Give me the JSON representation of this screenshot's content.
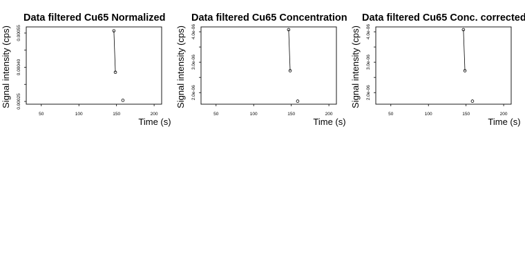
{
  "chart_data": [
    {
      "type": "line",
      "title": "Data filtered Cu65 Normalized",
      "xlabel": "Time (s)",
      "ylabel": "Signal intensity (cps)",
      "xlim": [
        30,
        210
      ],
      "ylim": [
        0.000238,
        0.000577
      ],
      "xticks": [
        "50",
        "100",
        "150",
        "200"
      ],
      "yticks": [
        "0.00025",
        "0.00040",
        "0.00055"
      ],
      "yticks_values": [
        0.00025,
        0.0004,
        0.00055
      ],
      "series": [
        {
          "x": [
            146.5,
            148.5,
            158.5
          ],
          "y": [
            0.00056,
            0.000378,
            0.000255
          ],
          "connected": [
            true,
            true,
            false
          ]
        }
      ],
      "grid": false
    },
    {
      "type": "line",
      "title": "Data filtered Cu65 Concentration",
      "xlabel": "Time (s)",
      "ylabel": "Signal intensity (cps)",
      "xlim": [
        30,
        210
      ],
      "ylim": [
        1.62e-06,
        4.16e-06
      ],
      "xticks": [
        "50",
        "100",
        "150",
        "200"
      ],
      "yticks": [
        "2.0e-06",
        "3.0e-06",
        "4.0e-06"
      ],
      "yticks_values": [
        2e-06,
        3e-06,
        4e-06
      ],
      "series": [
        {
          "x": [
            146.5,
            148.5,
            158.5
          ],
          "y": [
            4.07e-06,
            2.72e-06,
            1.72e-06
          ],
          "connected": [
            true,
            true,
            false
          ]
        }
      ],
      "grid": false
    },
    {
      "type": "line",
      "title": "Data filtered Cu65 Conc. corrected",
      "xlabel": "Time (s)",
      "ylabel": "Signal intensity (cps)",
      "xlim": [
        30,
        210
      ],
      "ylim": [
        1.62e-06,
        4.16e-06
      ],
      "xticks": [
        "50",
        "100",
        "150",
        "200"
      ],
      "yticks": [
        "2.0e-06",
        "3.0e-06",
        "4.0e-06"
      ],
      "yticks_values": [
        2e-06,
        3e-06,
        4e-06
      ],
      "series": [
        {
          "x": [
            146.5,
            148.5,
            158.5
          ],
          "y": [
            4.07e-06,
            2.72e-06,
            1.72e-06
          ],
          "connected": [
            true,
            true,
            false
          ]
        }
      ],
      "grid": false
    }
  ]
}
